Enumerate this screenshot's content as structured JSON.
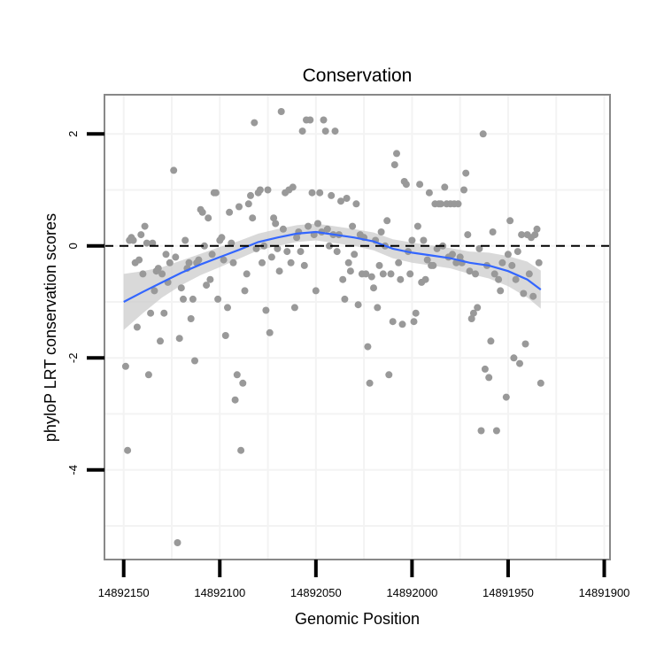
{
  "chart_data": {
    "type": "scatter",
    "title": "Conservation",
    "xlabel": "Genomic Position",
    "ylabel": "phyloP LRT conservation scores",
    "x_reversed": true,
    "xlim": [
      14892160,
      14891897
    ],
    "ylim": [
      -5.6,
      2.7
    ],
    "x_ticks": [
      14892150,
      14892100,
      14892050,
      14892000,
      14891950,
      14891900
    ],
    "x_tick_labels": [
      "14892150",
      "14892100",
      "14892050",
      "14892000",
      "14891950",
      "14891900"
    ],
    "y_ticks": [
      2,
      0,
      -2,
      -4
    ],
    "y_tick_labels": [
      "2",
      "0",
      "-2",
      "-4"
    ],
    "reference_line": {
      "y": 0,
      "style": "dashed"
    },
    "colors": {
      "points": "#999999",
      "smooth_line": "#3366ff",
      "ribbon": "#cccccc",
      "panel_border": "#888888",
      "grid": "#f3f3f3",
      "axis_ticks": "#000000"
    },
    "points": [
      {
        "x": 14892149,
        "y": -2.15
      },
      {
        "x": 14892148,
        "y": -3.65
      },
      {
        "x": 14892147,
        "y": 0.1
      },
      {
        "x": 14892146,
        "y": 0.15
      },
      {
        "x": 14892145,
        "y": 0.1
      },
      {
        "x": 14892144,
        "y": -0.3
      },
      {
        "x": 14892143,
        "y": -1.45
      },
      {
        "x": 14892142,
        "y": -0.25
      },
      {
        "x": 14892141,
        "y": 0.2
      },
      {
        "x": 14892140,
        "y": -0.5
      },
      {
        "x": 14892139,
        "y": 0.35
      },
      {
        "x": 14892138,
        "y": 0.05
      },
      {
        "x": 14892137,
        "y": -2.3
      },
      {
        "x": 14892136,
        "y": -1.2
      },
      {
        "x": 14892135,
        "y": 0.05
      },
      {
        "x": 14892134,
        "y": -0.8
      },
      {
        "x": 14892133,
        "y": -0.45
      },
      {
        "x": 14892132,
        "y": -0.4
      },
      {
        "x": 14892131,
        "y": -1.7
      },
      {
        "x": 14892130,
        "y": -0.5
      },
      {
        "x": 14892129,
        "y": -1.2
      },
      {
        "x": 14892128,
        "y": -0.15
      },
      {
        "x": 14892127,
        "y": -0.65
      },
      {
        "x": 14892126,
        "y": -0.3
      },
      {
        "x": 14892124,
        "y": 1.35
      },
      {
        "x": 14892123,
        "y": -0.2
      },
      {
        "x": 14892122,
        "y": -5.3
      },
      {
        "x": 14892121,
        "y": -1.65
      },
      {
        "x": 14892120,
        "y": -0.75
      },
      {
        "x": 14892119,
        "y": -0.95
      },
      {
        "x": 14892118,
        "y": 0.1
      },
      {
        "x": 14892117,
        "y": -0.4
      },
      {
        "x": 14892116,
        "y": -0.3
      },
      {
        "x": 14892115,
        "y": -1.3
      },
      {
        "x": 14892114,
        "y": -0.95
      },
      {
        "x": 14892113,
        "y": -2.05
      },
      {
        "x": 14892112,
        "y": -0.3
      },
      {
        "x": 14892111,
        "y": -0.25
      },
      {
        "x": 14892110,
        "y": 0.65
      },
      {
        "x": 14892109,
        "y": 0.6
      },
      {
        "x": 14892108,
        "y": 0.0
      },
      {
        "x": 14892107,
        "y": -0.7
      },
      {
        "x": 14892106,
        "y": 0.5
      },
      {
        "x": 14892105,
        "y": -0.6
      },
      {
        "x": 14892104,
        "y": -0.15
      },
      {
        "x": 14892103,
        "y": 0.95
      },
      {
        "x": 14892102,
        "y": 0.95
      },
      {
        "x": 14892101,
        "y": -0.95
      },
      {
        "x": 14892100,
        "y": 0.1
      },
      {
        "x": 14892099,
        "y": 0.15
      },
      {
        "x": 14892098,
        "y": -0.25
      },
      {
        "x": 14892097,
        "y": -1.6
      },
      {
        "x": 14892096,
        "y": -1.1
      },
      {
        "x": 14892095,
        "y": 0.6
      },
      {
        "x": 14892094,
        "y": 0.05
      },
      {
        "x": 14892093,
        "y": -0.3
      },
      {
        "x": 14892092,
        "y": -2.75
      },
      {
        "x": 14892091,
        "y": -2.3
      },
      {
        "x": 14892090,
        "y": 0.7
      },
      {
        "x": 14892089,
        "y": -3.65
      },
      {
        "x": 14892088,
        "y": -2.45
      },
      {
        "x": 14892087,
        "y": -0.8
      },
      {
        "x": 14892086,
        "y": -0.5
      },
      {
        "x": 14892085,
        "y": 0.75
      },
      {
        "x": 14892084,
        "y": 0.9
      },
      {
        "x": 14892083,
        "y": 0.5
      },
      {
        "x": 14892082,
        "y": 2.2
      },
      {
        "x": 14892081,
        "y": -0.05
      },
      {
        "x": 14892080,
        "y": 0.95
      },
      {
        "x": 14892079,
        "y": 1.0
      },
      {
        "x": 14892078,
        "y": -0.3
      },
      {
        "x": 14892077,
        "y": 0.0
      },
      {
        "x": 14892076,
        "y": -1.15
      },
      {
        "x": 14892075,
        "y": 1.0
      },
      {
        "x": 14892074,
        "y": -1.55
      },
      {
        "x": 14892073,
        "y": -0.2
      },
      {
        "x": 14892072,
        "y": 0.5
      },
      {
        "x": 14892071,
        "y": 0.4
      },
      {
        "x": 14892070,
        "y": -0.05
      },
      {
        "x": 14892069,
        "y": -0.45
      },
      {
        "x": 14892068,
        "y": 2.4
      },
      {
        "x": 14892067,
        "y": 0.3
      },
      {
        "x": 14892066,
        "y": 0.95
      },
      {
        "x": 14892065,
        "y": -0.1
      },
      {
        "x": 14892064,
        "y": 1.0
      },
      {
        "x": 14892063,
        "y": -0.3
      },
      {
        "x": 14892062,
        "y": 1.05
      },
      {
        "x": 14892061,
        "y": -1.1
      },
      {
        "x": 14892060,
        "y": 0.15
      },
      {
        "x": 14892059,
        "y": 0.25
      },
      {
        "x": 14892058,
        "y": -0.1
      },
      {
        "x": 14892057,
        "y": 2.05
      },
      {
        "x": 14892056,
        "y": -0.35
      },
      {
        "x": 14892055,
        "y": 2.25
      },
      {
        "x": 14892054,
        "y": 0.35
      },
      {
        "x": 14892053,
        "y": 2.25
      },
      {
        "x": 14892052,
        "y": 0.95
      },
      {
        "x": 14892051,
        "y": 0.2
      },
      {
        "x": 14892050,
        "y": -0.8
      },
      {
        "x": 14892049,
        "y": 0.4
      },
      {
        "x": 14892048,
        "y": 0.95
      },
      {
        "x": 14892047,
        "y": 0.25
      },
      {
        "x": 14892046,
        "y": 2.25
      },
      {
        "x": 14892045,
        "y": 2.05
      },
      {
        "x": 14892044,
        "y": 0.3
      },
      {
        "x": 14892043,
        "y": 0.0
      },
      {
        "x": 14892042,
        "y": 0.9
      },
      {
        "x": 14892041,
        "y": 0.2
      },
      {
        "x": 14892040,
        "y": 2.05
      },
      {
        "x": 14892039,
        "y": -0.1
      },
      {
        "x": 14892038,
        "y": 0.2
      },
      {
        "x": 14892037,
        "y": 0.8
      },
      {
        "x": 14892036,
        "y": -0.6
      },
      {
        "x": 14892035,
        "y": -0.95
      },
      {
        "x": 14892034,
        "y": 0.85
      },
      {
        "x": 14892033,
        "y": -0.3
      },
      {
        "x": 14892032,
        "y": -0.45
      },
      {
        "x": 14892031,
        "y": 0.35
      },
      {
        "x": 14892030,
        "y": -0.15
      },
      {
        "x": 14892029,
        "y": 0.75
      },
      {
        "x": 14892028,
        "y": -1.05
      },
      {
        "x": 14892027,
        "y": 0.2
      },
      {
        "x": 14892026,
        "y": -0.5
      },
      {
        "x": 14892025,
        "y": 0.15
      },
      {
        "x": 14892024,
        "y": -0.5
      },
      {
        "x": 14892023,
        "y": -1.8
      },
      {
        "x": 14892022,
        "y": -2.45
      },
      {
        "x": 14892021,
        "y": -0.55
      },
      {
        "x": 14892020,
        "y": -0.75
      },
      {
        "x": 14892019,
        "y": 0.1
      },
      {
        "x": 14892018,
        "y": -1.1
      },
      {
        "x": 14892017,
        "y": -0.35
      },
      {
        "x": 14892016,
        "y": 0.25
      },
      {
        "x": 14892015,
        "y": -0.5
      },
      {
        "x": 14892014,
        "y": 0.0
      },
      {
        "x": 14892013,
        "y": 0.45
      },
      {
        "x": 14892012,
        "y": -2.3
      },
      {
        "x": 14892011,
        "y": -0.5
      },
      {
        "x": 14892010,
        "y": -1.35
      },
      {
        "x": 14892009,
        "y": 1.45
      },
      {
        "x": 14892008,
        "y": 1.65
      },
      {
        "x": 14892007,
        "y": -0.3
      },
      {
        "x": 14892006,
        "y": -0.6
      },
      {
        "x": 14892005,
        "y": -1.4
      },
      {
        "x": 14892004,
        "y": 1.15
      },
      {
        "x": 14892003,
        "y": 1.1
      },
      {
        "x": 14892002,
        "y": -0.1
      },
      {
        "x": 14892001,
        "y": -0.5
      },
      {
        "x": 14892000,
        "y": 0.1
      },
      {
        "x": 14891999,
        "y": -1.35
      },
      {
        "x": 14891998,
        "y": -1.2
      },
      {
        "x": 14891997,
        "y": 0.35
      },
      {
        "x": 14891996,
        "y": 1.1
      },
      {
        "x": 14891995,
        "y": -0.65
      },
      {
        "x": 14891994,
        "y": 0.1
      },
      {
        "x": 14891993,
        "y": -0.6
      },
      {
        "x": 14891992,
        "y": -0.25
      },
      {
        "x": 14891991,
        "y": 0.95
      },
      {
        "x": 14891990,
        "y": -0.35
      },
      {
        "x": 14891989,
        "y": -0.35
      },
      {
        "x": 14891988,
        "y": 0.75
      },
      {
        "x": 14891987,
        "y": -0.05
      },
      {
        "x": 14891986,
        "y": 0.75
      },
      {
        "x": 14891985,
        "y": 0.75
      },
      {
        "x": 14891984,
        "y": 0.0
      },
      {
        "x": 14891983,
        "y": 1.05
      },
      {
        "x": 14891982,
        "y": 0.75
      },
      {
        "x": 14891981,
        "y": -0.2
      },
      {
        "x": 14891980,
        "y": 0.75
      },
      {
        "x": 14891979,
        "y": -0.15
      },
      {
        "x": 14891978,
        "y": 0.75
      },
      {
        "x": 14891977,
        "y": -0.3
      },
      {
        "x": 14891976,
        "y": 0.75
      },
      {
        "x": 14891975,
        "y": -0.2
      },
      {
        "x": 14891974,
        "y": -0.3
      },
      {
        "x": 14891973,
        "y": 1.0
      },
      {
        "x": 14891972,
        "y": 1.3
      },
      {
        "x": 14891971,
        "y": 0.2
      },
      {
        "x": 14891970,
        "y": -0.45
      },
      {
        "x": 14891969,
        "y": -1.3
      },
      {
        "x": 14891968,
        "y": -1.2
      },
      {
        "x": 14891967,
        "y": -0.5
      },
      {
        "x": 14891966,
        "y": -1.1
      },
      {
        "x": 14891965,
        "y": -0.05
      },
      {
        "x": 14891964,
        "y": -3.3
      },
      {
        "x": 14891963,
        "y": 2.0
      },
      {
        "x": 14891962,
        "y": -2.2
      },
      {
        "x": 14891961,
        "y": -0.35
      },
      {
        "x": 14891960,
        "y": -2.35
      },
      {
        "x": 14891959,
        "y": -1.7
      },
      {
        "x": 14891958,
        "y": 0.25
      },
      {
        "x": 14891957,
        "y": -0.5
      },
      {
        "x": 14891956,
        "y": -3.3
      },
      {
        "x": 14891955,
        "y": -0.6
      },
      {
        "x": 14891954,
        "y": -0.8
      },
      {
        "x": 14891953,
        "y": -0.3
      },
      {
        "x": 14891951,
        "y": -2.7
      },
      {
        "x": 14891950,
        "y": -0.15
      },
      {
        "x": 14891949,
        "y": 0.45
      },
      {
        "x": 14891948,
        "y": -0.35
      },
      {
        "x": 14891947,
        "y": -2.0
      },
      {
        "x": 14891946,
        "y": -0.6
      },
      {
        "x": 14891945,
        "y": -0.1
      },
      {
        "x": 14891944,
        "y": -2.1
      },
      {
        "x": 14891943,
        "y": 0.2
      },
      {
        "x": 14891942,
        "y": -0.85
      },
      {
        "x": 14891941,
        "y": -1.75
      },
      {
        "x": 14891940,
        "y": 0.2
      },
      {
        "x": 14891939,
        "y": -0.5
      },
      {
        "x": 14891938,
        "y": 0.15
      },
      {
        "x": 14891937,
        "y": -0.9
      },
      {
        "x": 14891936,
        "y": 0.2
      },
      {
        "x": 14891935,
        "y": 0.3
      },
      {
        "x": 14891934,
        "y": -0.3
      },
      {
        "x": 14891933,
        "y": -2.45
      }
    ],
    "smooth": {
      "x": [
        14892150,
        14892140,
        14892130,
        14892120,
        14892110,
        14892100,
        14892090,
        14892080,
        14892070,
        14892060,
        14892050,
        14892040,
        14892030,
        14892020,
        14892010,
        14892000,
        14891990,
        14891980,
        14891970,
        14891960,
        14891950,
        14891940,
        14891933
      ],
      "y": [
        -1.0,
        -0.82,
        -0.65,
        -0.48,
        -0.33,
        -0.2,
        -0.07,
        0.07,
        0.15,
        0.22,
        0.25,
        0.2,
        0.15,
        0.08,
        -0.05,
        -0.12,
        -0.17,
        -0.22,
        -0.3,
        -0.35,
        -0.45,
        -0.6,
        -0.78
      ],
      "lower": [
        -1.5,
        -1.2,
        -0.92,
        -0.7,
        -0.52,
        -0.38,
        -0.23,
        -0.08,
        0.0,
        0.07,
        0.1,
        0.05,
        0.0,
        -0.08,
        -0.22,
        -0.3,
        -0.35,
        -0.4,
        -0.5,
        -0.58,
        -0.72,
        -0.92,
        -1.12
      ],
      "upper": [
        -0.5,
        -0.45,
        -0.38,
        -0.26,
        -0.14,
        -0.02,
        0.09,
        0.22,
        0.3,
        0.37,
        0.4,
        0.35,
        0.3,
        0.24,
        0.12,
        0.06,
        0.01,
        -0.04,
        -0.1,
        -0.12,
        -0.18,
        -0.28,
        -0.44
      ]
    }
  }
}
